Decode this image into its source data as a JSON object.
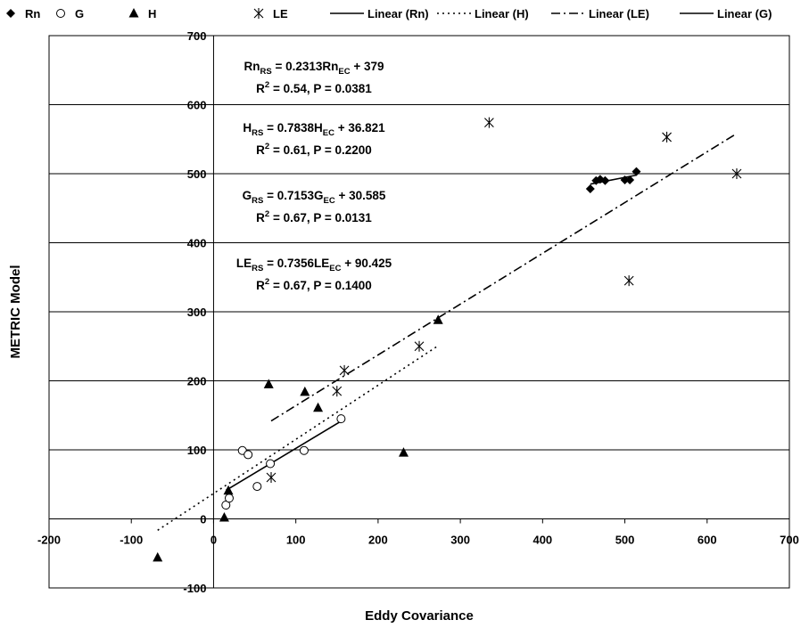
{
  "chart_data": {
    "type": "scatter",
    "xlabel": "Eddy Covariance",
    "ylabel": "METRIC Model",
    "xlim": [
      -200,
      700
    ],
    "ylim": [
      -100,
      700
    ],
    "x_ticks": [
      "-200",
      "-100",
      "0",
      "100",
      "200",
      "300",
      "400",
      "500",
      "600",
      "700"
    ],
    "y_ticks": [
      "-100",
      "0",
      "100",
      "200",
      "300",
      "400",
      "500",
      "600",
      "700"
    ],
    "grid": "horizontal major gridlines",
    "legend_position": "top",
    "legend": [
      {
        "label": "Rn",
        "marker": "diamond"
      },
      {
        "label": "G",
        "marker": "circle-open"
      },
      {
        "label": "H",
        "marker": "triangle"
      },
      {
        "label": "LE",
        "marker": "asterisk"
      },
      {
        "label": "Linear (Rn)",
        "line": "solid"
      },
      {
        "label": "Linear (H)",
        "line": "dotted"
      },
      {
        "label": "Linear (LE)",
        "line": "dashdot"
      },
      {
        "label": "Linear (G)",
        "line": "solid"
      }
    ],
    "series": [
      {
        "name": "Rn",
        "marker": "diamond",
        "points": [
          [
            458,
            478
          ],
          [
            465,
            490
          ],
          [
            470,
            492
          ],
          [
            476,
            490
          ],
          [
            500,
            491
          ],
          [
            506,
            491
          ],
          [
            514,
            503
          ]
        ]
      },
      {
        "name": "G",
        "marker": "circle-open",
        "points": [
          [
            35,
            99
          ],
          [
            42,
            93
          ],
          [
            53,
            47
          ],
          [
            69,
            80
          ],
          [
            110,
            99
          ],
          [
            155,
            145
          ],
          [
            15,
            20
          ],
          [
            19,
            30
          ]
        ]
      },
      {
        "name": "H",
        "marker": "triangle",
        "points": [
          [
            -68,
            -56
          ],
          [
            67,
            195
          ],
          [
            111,
            184
          ],
          [
            127,
            161
          ],
          [
            231,
            96
          ],
          [
            273,
            288
          ],
          [
            18,
            41
          ],
          [
            13,
            2
          ]
        ]
      },
      {
        "name": "LE",
        "marker": "asterisk",
        "points": [
          [
            335,
            574
          ],
          [
            551,
            553
          ],
          [
            636,
            500
          ],
          [
            505,
            345
          ],
          [
            250,
            250
          ],
          [
            159,
            215
          ],
          [
            150,
            185
          ],
          [
            70,
            60
          ]
        ]
      }
    ],
    "trendlines": [
      {
        "name": "Linear (Rn)",
        "style": "solid",
        "slope": 0.2313,
        "intercept": 379,
        "x_range": [
          458,
          514
        ]
      },
      {
        "name": "Linear (H)",
        "style": "dotted",
        "slope": 0.7838,
        "intercept": 36.821,
        "x_range": [
          -68,
          273
        ]
      },
      {
        "name": "Linear (LE)",
        "style": "dashdot",
        "slope": 0.7356,
        "intercept": 90.425,
        "x_range": [
          70,
          636
        ]
      },
      {
        "name": "Linear (G)",
        "style": "solid",
        "slope": 0.7153,
        "intercept": 30.585,
        "x_range": [
          15,
          155
        ]
      }
    ],
    "annotations": [
      {
        "line1": {
          "prefix": "Rn",
          "sub1": "RS",
          "mid": " = 0.2313Rn",
          "sub2": "EC",
          "suffix": " + 379"
        },
        "line2": {
          "pre": "R",
          "sup": "2",
          "post": " = 0.54, P = 0.0381"
        }
      },
      {
        "line1": {
          "prefix": "H",
          "sub1": "RS",
          "mid": " = 0.7838H",
          "sub2": "EC",
          "suffix": " + 36.821"
        },
        "line2": {
          "pre": "R",
          "sup": "2",
          "post": " = 0.61, P = 0.2200"
        }
      },
      {
        "line1": {
          "prefix": "G",
          "sub1": "RS",
          "mid": " = 0.7153G",
          "sub2": "EC",
          "suffix": " + 30.585"
        },
        "line2": {
          "pre": "R",
          "sup": "2",
          "post": " = 0.67, P = 0.0131"
        }
      },
      {
        "line1": {
          "prefix": "LE",
          "sub1": "RS",
          "mid": " = 0.7356LE",
          "sub2": "EC",
          "suffix": " + 90.425"
        },
        "line2": {
          "pre": "R",
          "sup": "2",
          "post": " = 0.67, P = 0.1400"
        }
      }
    ]
  }
}
